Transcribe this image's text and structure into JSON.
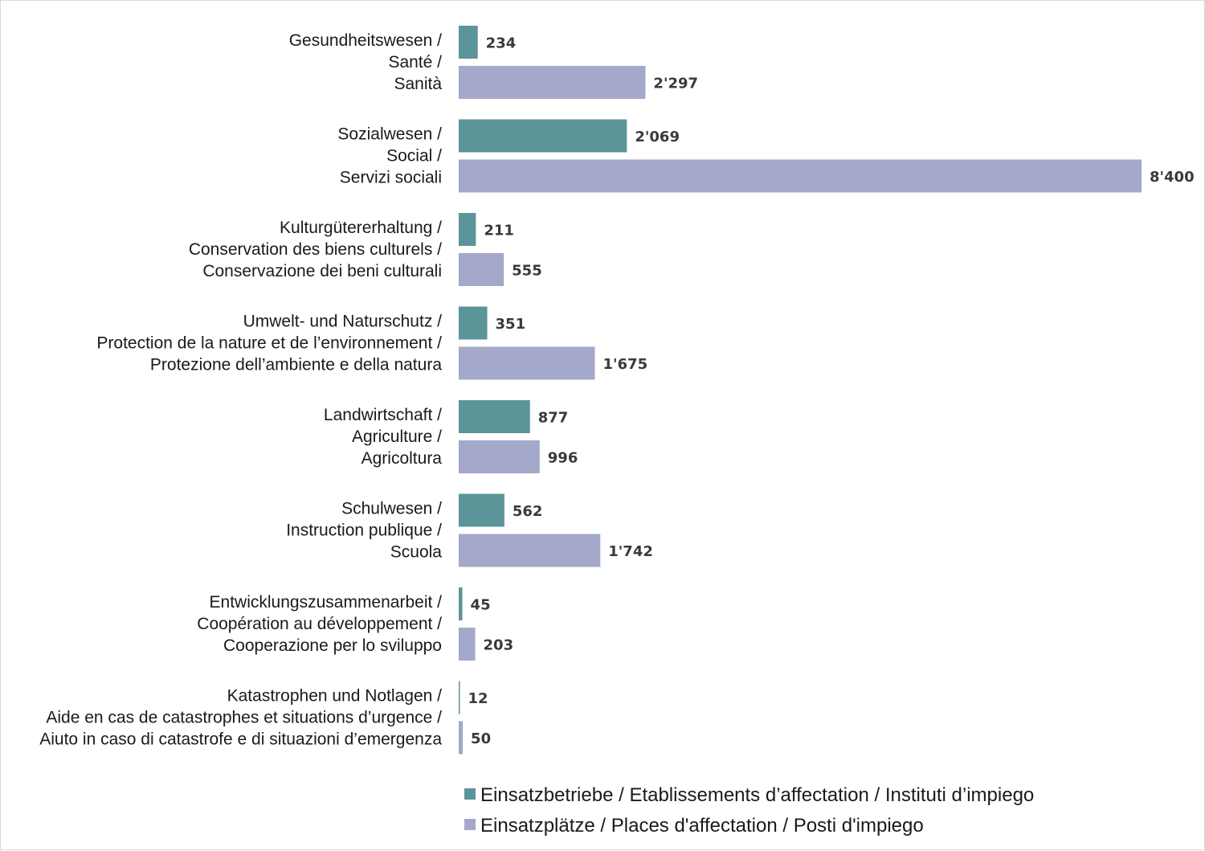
{
  "chart_data": {
    "type": "bar",
    "orientation": "horizontal",
    "title": "",
    "xlabel": "",
    "ylabel": "",
    "xlim": [
      0,
      8400
    ],
    "grid": false,
    "legend_position": "bottom",
    "categories": [
      [
        "Gesundheitswesen /",
        "Santé /",
        "Sanità"
      ],
      [
        "Sozialwesen /",
        "Social /",
        "Servizi sociali"
      ],
      [
        "Kulturgütererhaltung /",
        "Conservation des biens culturels /",
        "Conservazione dei beni culturali"
      ],
      [
        "Umwelt- und Naturschutz /",
        "Protection de la nature et de l’environnement /",
        "Protezione dell’ambiente e della natura"
      ],
      [
        "Landwirtschaft /",
        "Agriculture /",
        "Agricoltura"
      ],
      [
        "Schulwesen /",
        "Instruction publique /",
        "Scuola"
      ],
      [
        "Entwicklungszusammenarbeit /",
        "Coopération au développement /",
        "Cooperazione per lo sviluppo"
      ],
      [
        "Katastrophen und Notlagen /",
        "Aide en cas de catastrophes et situations d’urgence /",
        "Aiuto in caso di catastrofe e di situazioni d’emergenza"
      ]
    ],
    "series": [
      {
        "name": "Einsatzbetriebe / Etablissements d’affectation / Instituti d’impiego",
        "color": "#5b9499",
        "values": [
          234,
          2069,
          211,
          351,
          877,
          562,
          45,
          12
        ],
        "labels": [
          "234",
          "2'069",
          "211",
          "351",
          "877",
          "562",
          "45",
          "12"
        ]
      },
      {
        "name": "Einsatzplätze / Places d'affectation / Posti d'impiego",
        "color": "#a4a8ca",
        "values": [
          2297,
          8400,
          555,
          1675,
          996,
          1742,
          203,
          50
        ],
        "labels": [
          "2'297",
          "8'400",
          "555",
          "1'675",
          "996",
          "1'742",
          "203",
          "50"
        ]
      }
    ]
  }
}
